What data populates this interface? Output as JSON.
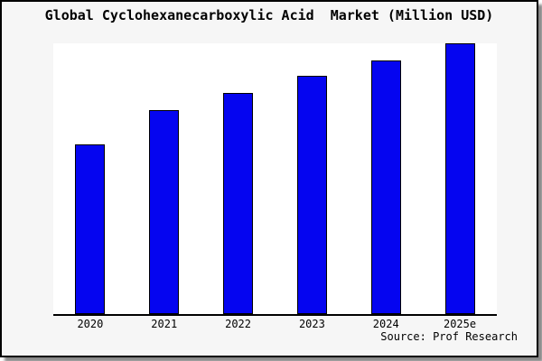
{
  "chart_data": {
    "type": "bar",
    "title": "Global Cyclohexanecarboxylic Acid  Market (Million USD)",
    "source": "Source: Prof Research",
    "categories": [
      "2020",
      "2021",
      "2022",
      "2023",
      "2024",
      "2025e"
    ],
    "values": [
      62.5,
      75.1,
      81.5,
      87.8,
      93.7,
      100
    ],
    "values_note": "y-axis is unlabeled in the chart; values are bar heights normalized to the tallest bar (2025e = 100)",
    "xlabel": "",
    "ylabel": "",
    "ylim": [
      0,
      100.7
    ],
    "grid": false,
    "legend": false,
    "bar_color": "#0505F0",
    "bar_edge_color": "#000000",
    "plot_background": "#FFFFFF",
    "page_background": "#F6F6F6"
  }
}
